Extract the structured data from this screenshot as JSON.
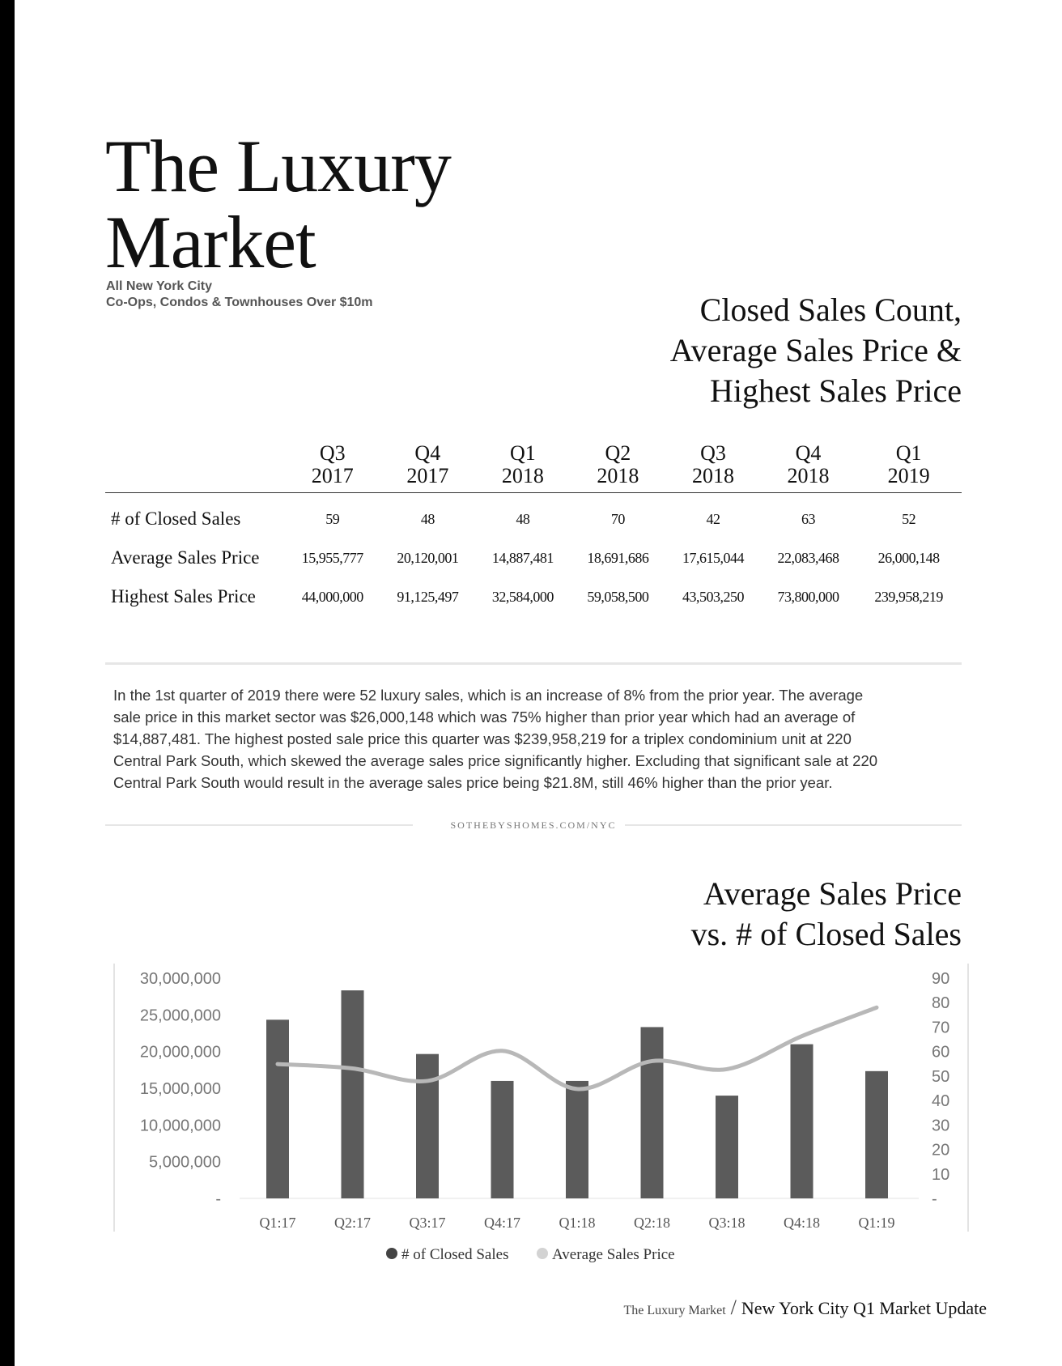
{
  "page": {
    "title_line1": "The Luxury",
    "title_line2": "Market",
    "subtitle_line1": "All New York City",
    "subtitle_line2": "Co-Ops, Condos & Townhouses Over $10m"
  },
  "closed_sales_section": {
    "heading_line1": "Closed Sales Count,",
    "heading_line2": "Average Sales Price &",
    "heading_line3": "Highest Sales Price"
  },
  "table": {
    "columns": [
      {
        "quarter": "Q3",
        "year": "2017"
      },
      {
        "quarter": "Q4",
        "year": "2017"
      },
      {
        "quarter": "Q1",
        "year": "2018"
      },
      {
        "quarter": "Q2",
        "year": "2018"
      },
      {
        "quarter": "Q3",
        "year": "2018"
      },
      {
        "quarter": "Q4",
        "year": "2018"
      },
      {
        "quarter": "Q1",
        "year": "2019"
      }
    ],
    "rows": [
      {
        "label": "# of Closed Sales",
        "values": [
          "59",
          "48",
          "48",
          "70",
          "42",
          "63",
          "52"
        ]
      },
      {
        "label": "Average Sales Price",
        "values": [
          "15,955,777",
          "20,120,001",
          "14,887,481",
          "18,691,686",
          "17,615,044",
          "22,083,468",
          "26,000,148"
        ]
      },
      {
        "label": "Highest Sales Price",
        "values": [
          "44,000,000",
          "91,125,497",
          "32,584,000",
          "59,058,500",
          "43,503,250",
          "73,800,000",
          "239,958,219"
        ]
      }
    ]
  },
  "summary": {
    "line1": "In the 1st quarter of 2019 there were 52 luxury sales, which is an increase of 8% from the prior year. The average",
    "line2": "sale price in this market sector was $26,000,148 which was 75% higher than prior year which had an average of",
    "line3": "$14,887,481. The highest posted sale price this quarter was $239,958,219 for a triplex condominium unit at 220",
    "line4": "Central Park South, which skewed the average sales price significantly higher. Excluding that significant sale at 220",
    "line5": "Central Park South would result in the average sales price being $21.8M, still 46% higher than the prior year."
  },
  "website": "SOTHEBYSHOMES.COM/NYC",
  "avg_section": {
    "heading_line1": "Average Sales Price",
    "heading_line2": "vs. # of Closed Sales"
  },
  "colors": {
    "bar": "#5b5b5b",
    "line": "#b8b8b8",
    "axis_text": "#777777",
    "tick_text": "#555555"
  },
  "chart_data": {
    "type": "bar",
    "title": "Average Sales Price vs. # of Closed Sales",
    "categories": [
      "Q1:17",
      "Q2:17",
      "Q3:17",
      "Q4:17",
      "Q1:18",
      "Q2:18",
      "Q3:18",
      "Q4:18",
      "Q1:19"
    ],
    "series": [
      {
        "name": "# of Closed Sales",
        "type": "bar",
        "axis": "right",
        "values": [
          73,
          85,
          59,
          48,
          48,
          70,
          42,
          63,
          52
        ]
      },
      {
        "name": "Average Sales Price",
        "type": "line",
        "axis": "left",
        "values": [
          18300000,
          17700000,
          16000000,
          20100000,
          14900000,
          18700000,
          17600000,
          22100000,
          26000000
        ]
      }
    ],
    "left_axis": {
      "ylim": [
        0,
        30000000
      ],
      "ticks": [
        "-",
        "5,000,000",
        "10,000,000",
        "15,000,000",
        "20,000,000",
        "25,000,000",
        "30,000,000"
      ]
    },
    "right_axis": {
      "ylim": [
        0,
        90
      ],
      "ticks": [
        "-",
        "10",
        "20",
        "30",
        "40",
        "50",
        "60",
        "70",
        "80",
        "90"
      ]
    },
    "legend": [
      {
        "label": "# of Closed Sales",
        "color": "#444444"
      },
      {
        "label": "Average Sales Price",
        "color": "#d3d3d3"
      }
    ],
    "legend_position": "bottom"
  },
  "footer": {
    "left": "The Luxury Market",
    "separator": "/",
    "right": "New York City Q1 Market Update"
  }
}
